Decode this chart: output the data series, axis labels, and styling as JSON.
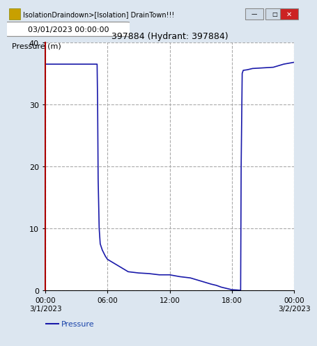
{
  "title": "397884 (Hydrant: 397884)",
  "ylabel": "Pressure (m)",
  "ylim": [
    0,
    40
  ],
  "yticks": [
    0,
    10,
    20,
    30,
    40
  ],
  "xlabel_ticks": [
    "00:00\n3/1/2023",
    "06:00",
    "12:00",
    "18:00",
    "00:00\n3/2/2023"
  ],
  "xtick_positions": [
    0,
    6,
    12,
    18,
    24
  ],
  "line_color": "#1a1aaa",
  "grid_color": "#aaaaaa",
  "grid_style": "--",
  "yaxis_color": "#aa0000",
  "window_title": "IsolationDraindown>[Isolation] DrainTown!!!",
  "datetime_label": "03/01/2023 00:00:00",
  "legend_label": "Pressure",
  "background_color": "#dce6f0",
  "plot_bg_color": "#ffffff",
  "titlebar_color": "#b8cce4",
  "pressure_data": {
    "times": [
      0,
      0.5,
      5.0,
      5.05,
      5.1,
      5.2,
      5.3,
      5.5,
      5.8,
      6.0,
      6.5,
      7.0,
      7.5,
      8.0,
      9.0,
      10.0,
      11.0,
      12.0,
      13.0,
      14.0,
      15.0,
      16.0,
      16.5,
      17.0,
      17.5,
      18.0,
      18.5,
      18.8,
      18.85,
      18.9,
      19.0,
      19.1,
      19.5,
      20.0,
      21.0,
      22.0,
      23.0,
      24.0
    ],
    "values": [
      36.5,
      36.5,
      36.5,
      30.0,
      18.0,
      10.0,
      7.5,
      6.5,
      5.5,
      5.0,
      4.5,
      4.0,
      3.5,
      3.0,
      2.8,
      2.7,
      2.5,
      2.5,
      2.2,
      2.0,
      1.5,
      1.0,
      0.8,
      0.5,
      0.3,
      0.1,
      0.05,
      0.0,
      0.0,
      20.0,
      35.0,
      35.5,
      35.6,
      35.8,
      35.9,
      36.0,
      36.5,
      36.8
    ]
  }
}
